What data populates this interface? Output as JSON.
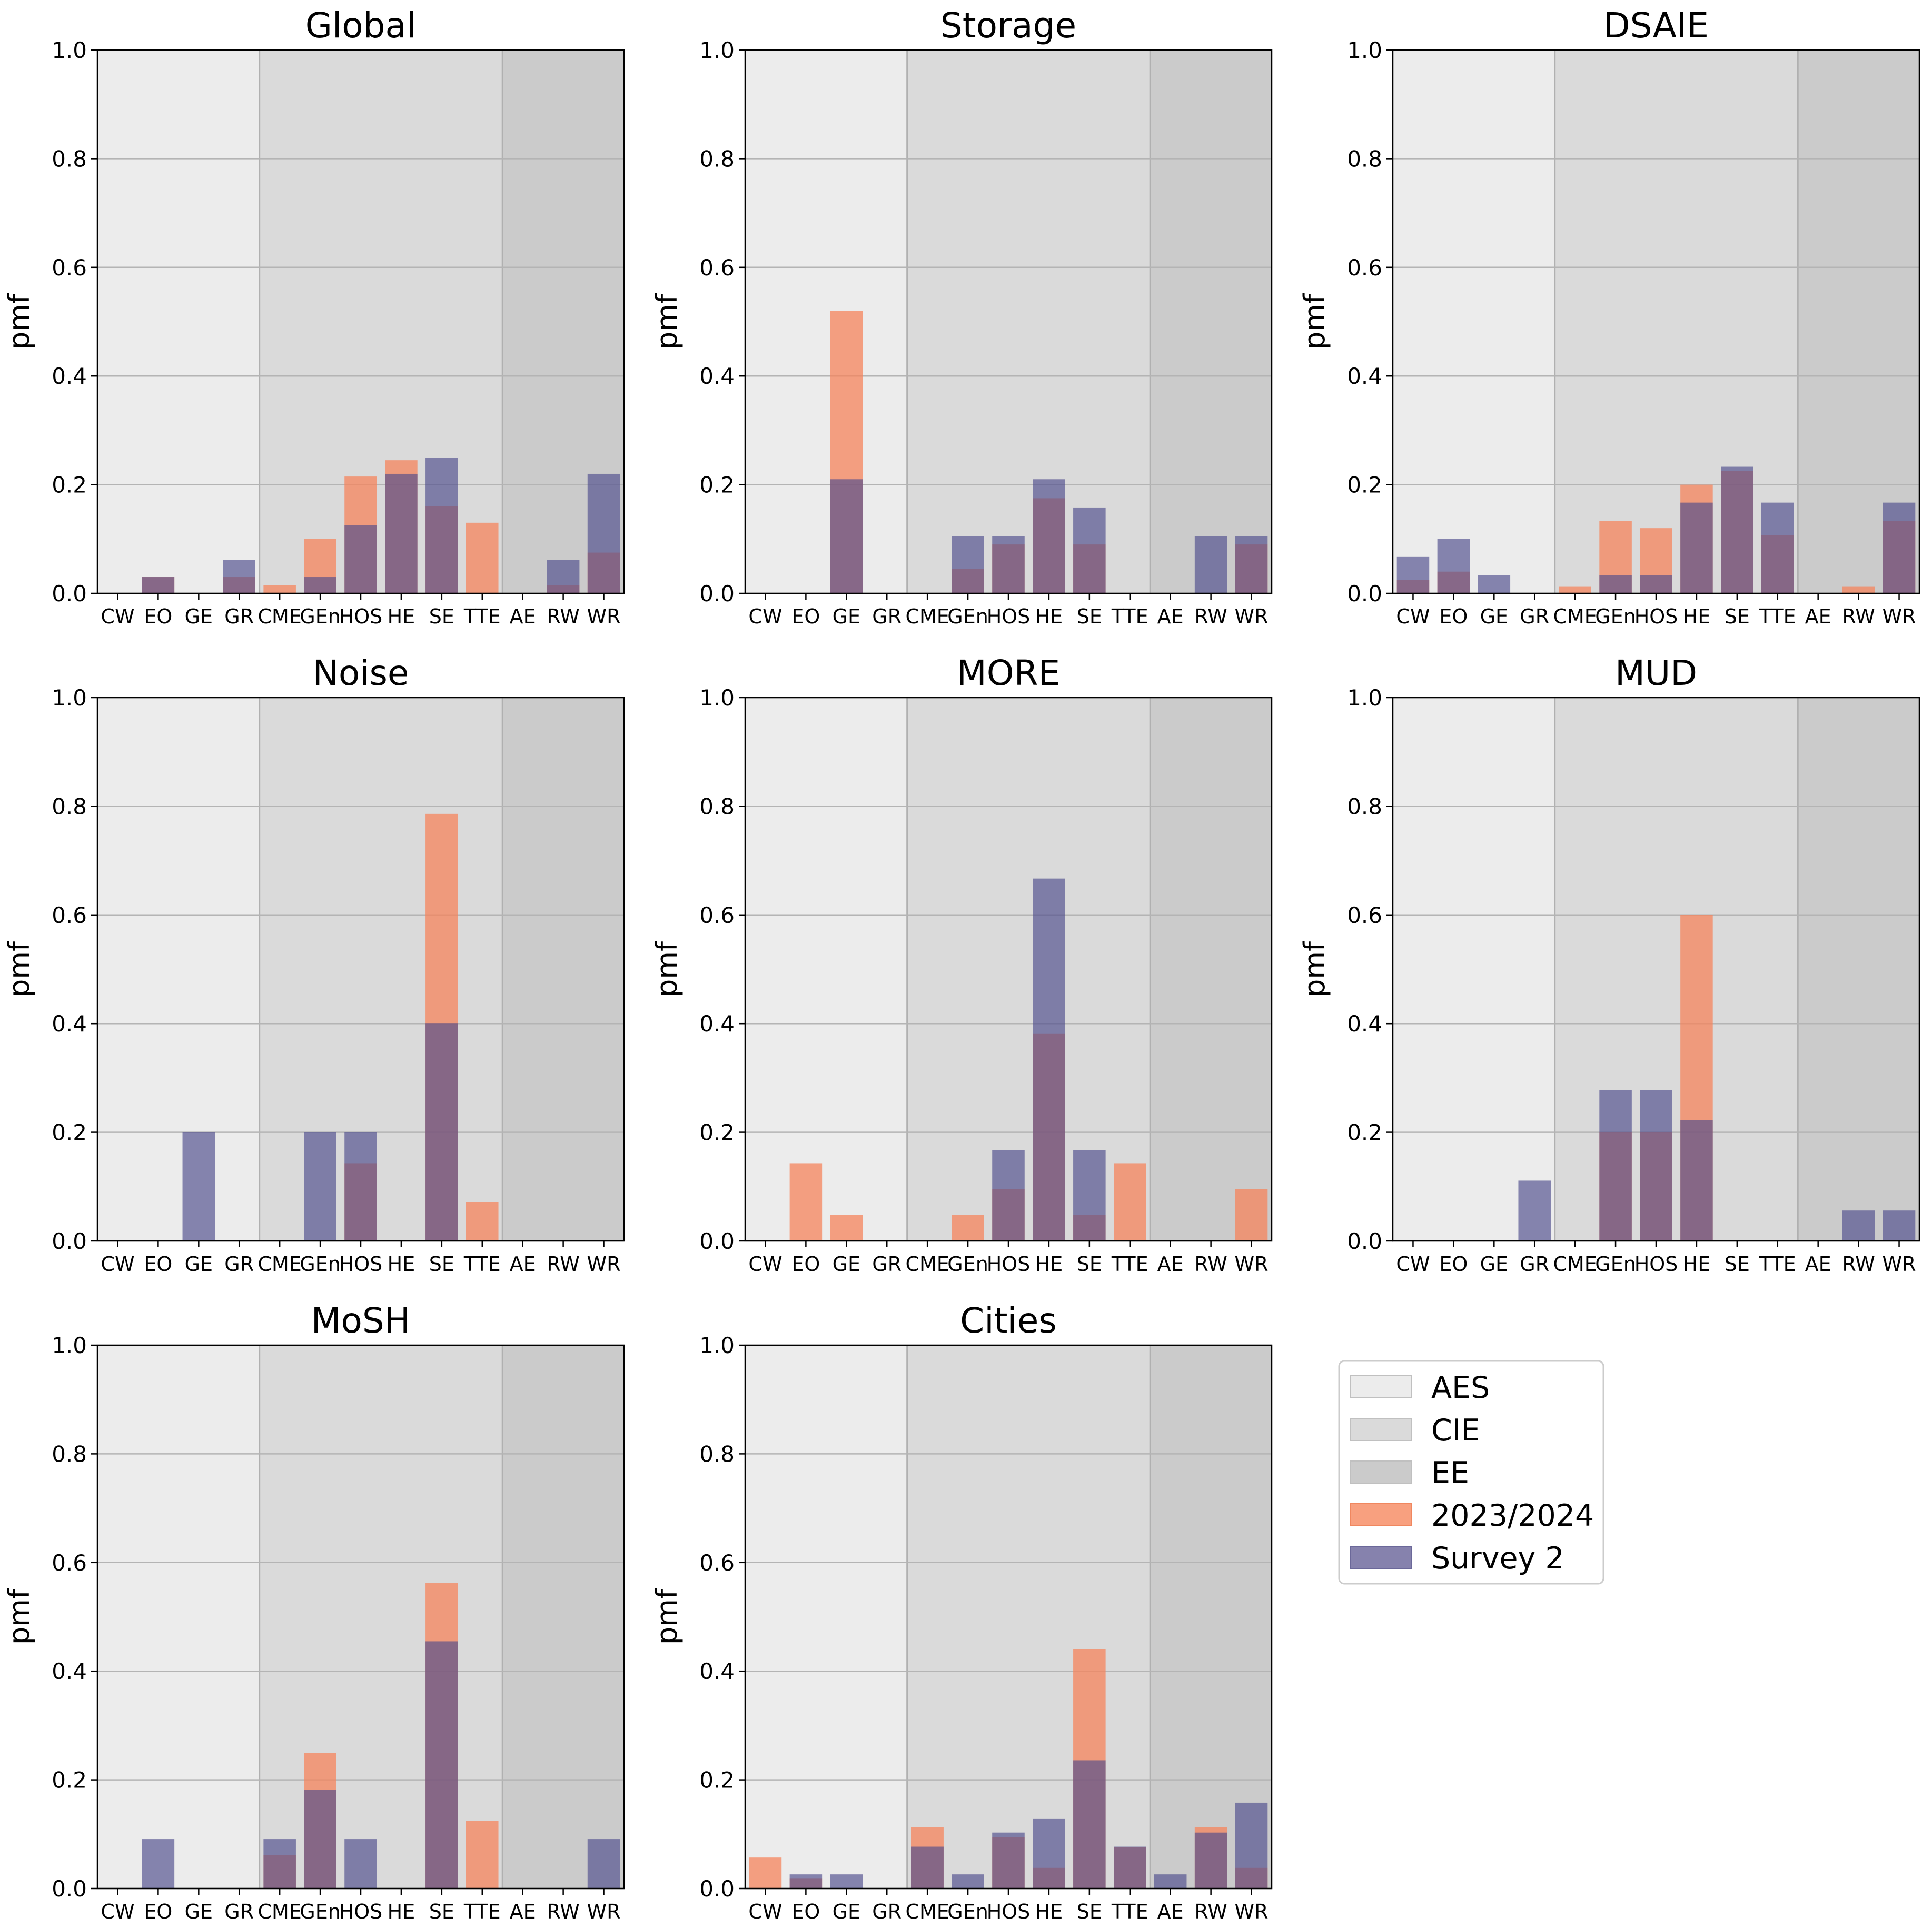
{
  "categories": [
    "CW",
    "EO",
    "GE",
    "GR",
    "CME",
    "GEn",
    "HOS",
    "HE",
    "SE",
    "TTE",
    "AE",
    "RW",
    "WR"
  ],
  "regions": [
    {
      "label": "AES",
      "start": 0,
      "end": 4,
      "color": "#ececec"
    },
    {
      "label": "CIE",
      "start": 4,
      "end": 10,
      "color": "#dadada"
    },
    {
      "label": "EE",
      "start": 10,
      "end": 13,
      "color": "#cbcbcb"
    }
  ],
  "series_styles": [
    {
      "name": "2023/2024",
      "color": "#f5845c",
      "opacity": 0.75
    },
    {
      "name": "Survey 2",
      "color": "#4d4b8c",
      "opacity": 0.65
    }
  ],
  "legend": {
    "placement": "lower-right empty panel",
    "entries": [
      {
        "label": "AES",
        "color": "#ececec"
      },
      {
        "label": "CIE",
        "color": "#dadada"
      },
      {
        "label": "EE",
        "color": "#cbcbcb"
      },
      {
        "label": "2023/2024",
        "color": "#f8a07f"
      },
      {
        "label": "Survey 2",
        "color": "#8682ad"
      }
    ]
  },
  "chart_data": [
    {
      "type": "bar",
      "title": "Global",
      "xlabel": "",
      "ylabel": "pmf",
      "ylim": [
        0,
        1
      ],
      "yticks": [
        "0.0",
        "0.2",
        "0.4",
        "0.6",
        "0.8",
        "1.0"
      ],
      "grid": true,
      "categories": [
        "CW",
        "EO",
        "GE",
        "GR",
        "CME",
        "GEn",
        "HOS",
        "HE",
        "SE",
        "TTE",
        "AE",
        "RW",
        "WR"
      ],
      "series": [
        {
          "name": "2023/2024",
          "values": [
            0,
            0.03,
            0,
            0.03,
            0.015,
            0.1,
            0.215,
            0.245,
            0.16,
            0.13,
            0,
            0.015,
            0.075
          ]
        },
        {
          "name": "Survey 2",
          "values": [
            0,
            0.03,
            0,
            0.062,
            0,
            0.03,
            0.125,
            0.22,
            0.25,
            0,
            0,
            0.062,
            0.22
          ]
        }
      ]
    },
    {
      "type": "bar",
      "title": "Storage",
      "xlabel": "",
      "ylabel": "pmf",
      "ylim": [
        0,
        1
      ],
      "yticks": [
        "0.0",
        "0.2",
        "0.4",
        "0.6",
        "0.8",
        "1.0"
      ],
      "grid": true,
      "categories": [
        "CW",
        "EO",
        "GE",
        "GR",
        "CME",
        "GEn",
        "HOS",
        "HE",
        "SE",
        "TTE",
        "AE",
        "RW",
        "WR"
      ],
      "series": [
        {
          "name": "2023/2024",
          "values": [
            0,
            0,
            0.52,
            0,
            0,
            0.045,
            0.09,
            0.175,
            0.09,
            0,
            0,
            0,
            0.09
          ]
        },
        {
          "name": "Survey 2",
          "values": [
            0,
            0,
            0.21,
            0,
            0,
            0.105,
            0.105,
            0.21,
            0.158,
            0,
            0,
            0.105,
            0.105
          ]
        }
      ]
    },
    {
      "type": "bar",
      "title": "DSAIE",
      "xlabel": "",
      "ylabel": "pmf",
      "ylim": [
        0,
        1
      ],
      "yticks": [
        "0.0",
        "0.2",
        "0.4",
        "0.6",
        "0.8",
        "1.0"
      ],
      "grid": true,
      "categories": [
        "CW",
        "EO",
        "GE",
        "GR",
        "CME",
        "GEn",
        "HOS",
        "HE",
        "SE",
        "TTE",
        "AE",
        "RW",
        "WR"
      ],
      "series": [
        {
          "name": "2023/2024",
          "values": [
            0.025,
            0.04,
            0,
            0,
            0.013,
            0.133,
            0.12,
            0.2,
            0.225,
            0.107,
            0,
            0.013,
            0.133
          ]
        },
        {
          "name": "Survey 2",
          "values": [
            0.067,
            0.1,
            0.033,
            0,
            0,
            0.033,
            0.033,
            0.167,
            0.233,
            0.167,
            0,
            0,
            0.167
          ]
        }
      ]
    },
    {
      "type": "bar",
      "title": "Noise",
      "xlabel": "",
      "ylabel": "pmf",
      "ylim": [
        0,
        1
      ],
      "yticks": [
        "0.0",
        "0.2",
        "0.4",
        "0.6",
        "0.8",
        "1.0"
      ],
      "grid": true,
      "categories": [
        "CW",
        "EO",
        "GE",
        "GR",
        "CME",
        "GEn",
        "HOS",
        "HE",
        "SE",
        "TTE",
        "AE",
        "RW",
        "WR"
      ],
      "series": [
        {
          "name": "2023/2024",
          "values": [
            0,
            0,
            0,
            0,
            0,
            0,
            0.143,
            0,
            0.786,
            0.071,
            0,
            0,
            0
          ]
        },
        {
          "name": "Survey 2",
          "values": [
            0,
            0,
            0.2,
            0,
            0,
            0.2,
            0.2,
            0,
            0.4,
            0,
            0,
            0,
            0
          ]
        }
      ]
    },
    {
      "type": "bar",
      "title": "MORE",
      "xlabel": "",
      "ylabel": "pmf",
      "ylim": [
        0,
        1
      ],
      "yticks": [
        "0.0",
        "0.2",
        "0.4",
        "0.6",
        "0.8",
        "1.0"
      ],
      "grid": true,
      "categories": [
        "CW",
        "EO",
        "GE",
        "GR",
        "CME",
        "GEn",
        "HOS",
        "HE",
        "SE",
        "TTE",
        "AE",
        "RW",
        "WR"
      ],
      "series": [
        {
          "name": "2023/2024",
          "values": [
            0,
            0.143,
            0.048,
            0,
            0,
            0.048,
            0.095,
            0.381,
            0.048,
            0.143,
            0,
            0,
            0.095
          ]
        },
        {
          "name": "Survey 2",
          "values": [
            0,
            0,
            0,
            0,
            0,
            0,
            0.167,
            0.667,
            0.167,
            0,
            0,
            0,
            0
          ]
        }
      ]
    },
    {
      "type": "bar",
      "title": "MUD",
      "xlabel": "",
      "ylabel": "pmf",
      "ylim": [
        0,
        1
      ],
      "yticks": [
        "0.0",
        "0.2",
        "0.4",
        "0.6",
        "0.8",
        "1.0"
      ],
      "grid": true,
      "categories": [
        "CW",
        "EO",
        "GE",
        "GR",
        "CME",
        "GEn",
        "HOS",
        "HE",
        "SE",
        "TTE",
        "AE",
        "RW",
        "WR"
      ],
      "series": [
        {
          "name": "2023/2024",
          "values": [
            0,
            0,
            0,
            0,
            0,
            0.2,
            0.2,
            0.6,
            0,
            0,
            0,
            0,
            0
          ]
        },
        {
          "name": "Survey 2",
          "values": [
            0,
            0,
            0,
            0.111,
            0,
            0.278,
            0.278,
            0.222,
            0,
            0,
            0,
            0.056,
            0.056
          ]
        }
      ]
    },
    {
      "type": "bar",
      "title": "MoSH",
      "xlabel": "",
      "ylabel": "pmf",
      "ylim": [
        0,
        1
      ],
      "yticks": [
        "0.0",
        "0.2",
        "0.4",
        "0.6",
        "0.8",
        "1.0"
      ],
      "grid": true,
      "categories": [
        "CW",
        "EO",
        "GE",
        "GR",
        "CME",
        "GEn",
        "HOS",
        "HE",
        "SE",
        "TTE",
        "AE",
        "RW",
        "WR"
      ],
      "series": [
        {
          "name": "2023/2024",
          "values": [
            0,
            0,
            0,
            0,
            0.062,
            0.25,
            0,
            0,
            0.562,
            0.125,
            0,
            0,
            0
          ]
        },
        {
          "name": "Survey 2",
          "values": [
            0,
            0.091,
            0,
            0,
            0.091,
            0.182,
            0.091,
            0,
            0.455,
            0,
            0,
            0,
            0.091
          ]
        }
      ]
    },
    {
      "type": "bar",
      "title": "Cities",
      "xlabel": "",
      "ylabel": "pmf",
      "ylim": [
        0,
        1
      ],
      "yticks": [
        "0.0",
        "0.2",
        "0.4",
        "0.6",
        "0.8",
        "1.0"
      ],
      "grid": true,
      "categories": [
        "CW",
        "EO",
        "GE",
        "GR",
        "CME",
        "GEn",
        "HOS",
        "HE",
        "SE",
        "TTE",
        "AE",
        "RW",
        "WR"
      ],
      "series": [
        {
          "name": "2023/2024",
          "values": [
            0.057,
            0.019,
            0,
            0,
            0.113,
            0,
            0.094,
            0.038,
            0.44,
            0.076,
            0,
            0.113,
            0.038
          ]
        },
        {
          "name": "Survey 2",
          "values": [
            0,
            0.026,
            0.026,
            0,
            0.077,
            0.026,
            0.103,
            0.128,
            0.236,
            0.077,
            0.026,
            0.103,
            0.158
          ]
        }
      ]
    }
  ]
}
